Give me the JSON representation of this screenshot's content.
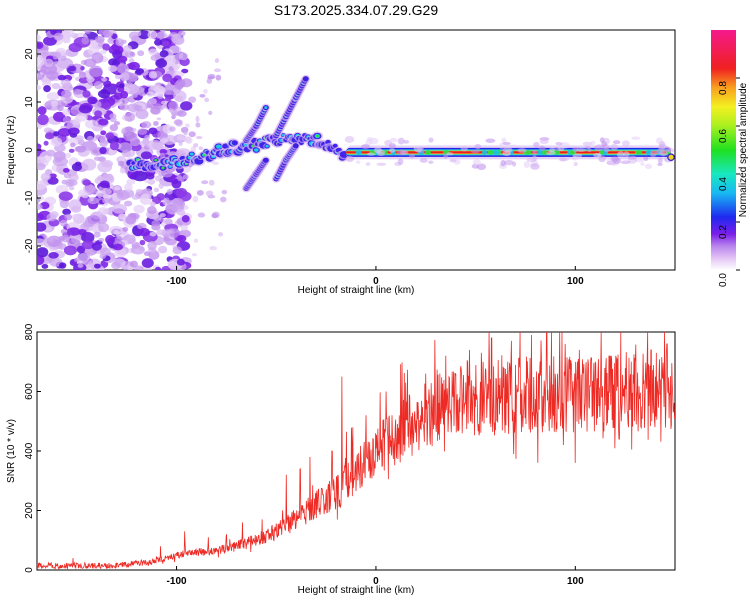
{
  "chart_data": [
    {
      "type": "heatmap",
      "title": "S173.2025.334.07.29.G29",
      "xlabel": "Height of straight line (km)",
      "ylabel": "Frequency (Hz)",
      "xlim": [
        -170,
        150
      ],
      "ylim": [
        -25,
        25
      ],
      "xticks": [
        -100,
        0,
        100
      ],
      "xtick_labels": [
        "-100",
        "0",
        "100"
      ],
      "yticks": [
        -20,
        -10,
        0,
        10,
        20
      ],
      "ytick_labels": [
        "-20",
        "-10",
        "0",
        "10",
        "20"
      ],
      "colorbar": {
        "label": "Normalized spectral amplitude",
        "range": [
          0,
          1
        ],
        "ticks": [
          0.0,
          0.2,
          0.4,
          0.6,
          0.8
        ],
        "tick_labels": [
          "0.0",
          "0.2",
          "0.4",
          "0.6",
          "0.8"
        ]
      },
      "features": {
        "noise_region_x": [
          -170,
          -105
        ],
        "dominant_line_center": [
          [
            -123,
            -3.0
          ],
          [
            -110,
            -2.8
          ],
          [
            -100,
            -2.5
          ],
          [
            -90,
            -1.5
          ],
          [
            -80,
            -0.5
          ],
          [
            -70,
            0.5
          ],
          [
            -60,
            1.0
          ],
          [
            -50,
            2.0
          ],
          [
            -40,
            2.5
          ],
          [
            -30,
            2.0
          ],
          [
            -22,
            0.5
          ],
          [
            -15,
            -1.0
          ],
          [
            -10,
            0.0
          ],
          [
            0,
            -0.5
          ],
          [
            25,
            -0.5
          ],
          [
            50,
            -0.5
          ],
          [
            75,
            -0.5
          ],
          [
            100,
            -0.5
          ],
          [
            125,
            -0.5
          ],
          [
            148,
            -1.5
          ]
        ],
        "branches": [
          [
            [
              -65,
              2
            ],
            [
              -60,
              5
            ],
            [
              -55,
              9
            ]
          ],
          [
            [
              -50,
              3
            ],
            [
              -45,
              7
            ],
            [
              -40,
              11
            ],
            [
              -35,
              15
            ]
          ],
          [
            [
              -65,
              -8
            ],
            [
              -60,
              -5
            ],
            [
              -55,
              -2
            ]
          ],
          [
            [
              -50,
              -6
            ],
            [
              -45,
              -2
            ],
            [
              -40,
              1
            ]
          ]
        ]
      }
    },
    {
      "type": "line",
      "xlabel": "Height of straight line (km)",
      "ylabel": "SNR (10 * v/v)",
      "xlim": [
        -170,
        150
      ],
      "ylim": [
        0,
        800
      ],
      "xticks": [
        -100,
        0,
        100
      ],
      "xtick_labels": [
        "-100",
        "0",
        "100"
      ],
      "yticks": [
        0,
        200,
        400,
        600,
        800
      ],
      "ytick_labels": [
        "0",
        "200",
        "400",
        "600",
        "800"
      ],
      "series": [
        {
          "name": "SNR",
          "color": "#ee2a24",
          "trend": [
            [
              -170,
              15
            ],
            [
              -130,
              15
            ],
            [
              -110,
              30
            ],
            [
              -100,
              50
            ],
            [
              -90,
              60
            ],
            [
              -80,
              65
            ],
            [
              -70,
              80
            ],
            [
              -60,
              100
            ],
            [
              -50,
              130
            ],
            [
              -40,
              170
            ],
            [
              -30,
              220
            ],
            [
              -20,
              260
            ],
            [
              -10,
              330
            ],
            [
              0,
              400
            ],
            [
              10,
              450
            ],
            [
              20,
              500
            ],
            [
              30,
              540
            ],
            [
              40,
              560
            ],
            [
              50,
              575
            ],
            [
              60,
              580
            ],
            [
              80,
              590
            ],
            [
              100,
              590
            ],
            [
              120,
              595
            ],
            [
              150,
              600
            ]
          ],
          "spikes": [
            [
              -152,
              40
            ],
            [
              -108,
              80
            ],
            [
              -96,
              130
            ],
            [
              -84,
              110
            ],
            [
              -75,
              120
            ],
            [
              -67,
              160
            ],
            [
              -57,
              170
            ],
            [
              -45,
              320
            ],
            [
              -38,
              340
            ],
            [
              -33,
              380
            ],
            [
              -22,
              400
            ],
            [
              -17,
              650
            ],
            [
              -12,
              430
            ],
            [
              -5,
              520
            ],
            [
              5,
              600
            ],
            [
              15,
              630
            ],
            [
              25,
              660
            ],
            [
              35,
              720
            ],
            [
              47,
              740
            ],
            [
              58,
              780
            ],
            [
              68,
              770
            ],
            [
              78,
              790
            ],
            [
              88,
              800
            ],
            [
              95,
              760
            ],
            [
              102,
              740
            ],
            [
              110,
              700
            ],
            [
              118,
              720
            ],
            [
              128,
              700
            ],
            [
              138,
              740
            ],
            [
              146,
              760
            ],
            [
              100,
              360
            ],
            [
              122,
              440
            ],
            [
              140,
              480
            ],
            [
              60,
              470
            ]
          ]
        }
      ]
    }
  ]
}
